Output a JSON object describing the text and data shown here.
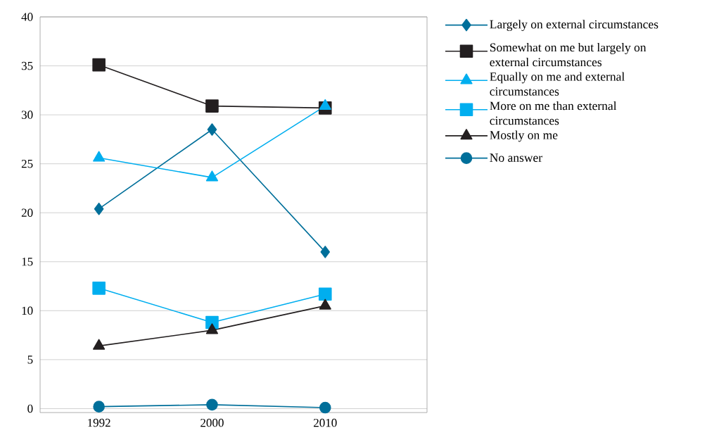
{
  "chart_data": {
    "type": "line",
    "categories": [
      "1992",
      "2000",
      "2010"
    ],
    "series": [
      {
        "name": "Largely on external circumstances",
        "color": "#006f9a",
        "marker": "diamond",
        "values": [
          20.4,
          28.5,
          16.0
        ]
      },
      {
        "name": "Somewhat on me but largely on external circumstances",
        "color": "#231f20",
        "marker": "square",
        "values": [
          35.1,
          30.9,
          30.7
        ]
      },
      {
        "name": "Equally on me and external circumstances",
        "color": "#00aeef",
        "marker": "triangle",
        "values": [
          25.6,
          23.6,
          30.9
        ]
      },
      {
        "name": "More on me than external circumstances",
        "color": "#00aeef",
        "marker": "square",
        "values": [
          12.3,
          8.8,
          11.7
        ]
      },
      {
        "name": "Mostly on me",
        "color": "#231f20",
        "marker": "triangle",
        "values": [
          6.4,
          8.0,
          10.5
        ]
      },
      {
        "name": "No answer",
        "color": "#006f9a",
        "marker": "circle",
        "values": [
          0.2,
          0.4,
          0.1
        ]
      }
    ],
    "ylim": [
      0,
      40
    ],
    "yticks": [
      0,
      5,
      10,
      15,
      20,
      25,
      30,
      35,
      40
    ],
    "grid": "y",
    "legend": "right",
    "line_style": "solid"
  }
}
